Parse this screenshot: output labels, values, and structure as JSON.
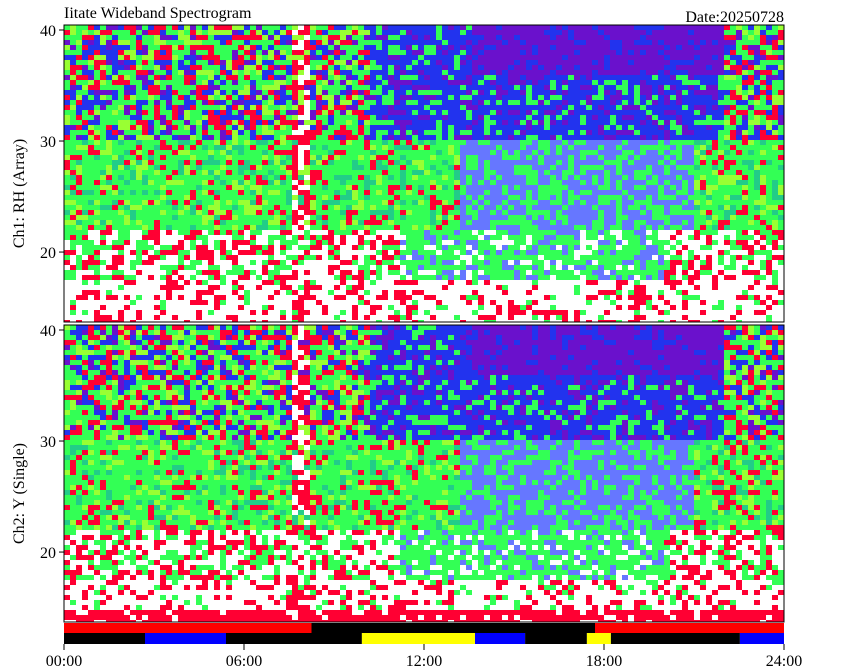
{
  "chart_data": [
    {
      "type": "heatmap",
      "title": "Iitate Wideband Spectrogram",
      "subtitle": "Date:20250728",
      "ylabel": "Ch1: RH (Array)",
      "ylim": [
        13.7,
        40.45
      ],
      "yticks": [
        20,
        30,
        40
      ]
    },
    {
      "type": "heatmap",
      "ylabel": "Ch2: Y (Single)",
      "ylim": [
        13.7,
        40.45
      ],
      "yticks": [
        20,
        30,
        40
      ],
      "xlim": [
        0,
        24
      ],
      "xticks": [
        {
          "value": 0,
          "label": "00:00"
        },
        {
          "value": 6,
          "label": "06:00"
        },
        {
          "value": 12,
          "label": "12:00"
        },
        {
          "value": 18,
          "label": "18:00"
        },
        {
          "value": 24,
          "label": "24:00"
        }
      ],
      "status_rows": [
        [
          {
            "start": 0,
            "end": 8.25,
            "color": "#ff0000"
          },
          {
            "start": 8.25,
            "end": 17.7,
            "color": "#000000"
          },
          {
            "start": 17.7,
            "end": 24,
            "color": "#ff0000"
          }
        ],
        [
          {
            "start": 0,
            "end": 2.7,
            "color": "#000000"
          },
          {
            "start": 2.7,
            "end": 5.4,
            "color": "#0000ff"
          },
          {
            "start": 5.4,
            "end": 9.93,
            "color": "#000000"
          },
          {
            "start": 9.93,
            "end": 13.7,
            "color": "#ffff00"
          },
          {
            "start": 13.7,
            "end": 15.37,
            "color": "#0000ff"
          },
          {
            "start": 15.37,
            "end": 17.43,
            "color": "#000000"
          },
          {
            "start": 17.43,
            "end": 18.23,
            "color": "#ffff00"
          },
          {
            "start": 18.23,
            "end": 22.53,
            "color": "#000000"
          },
          {
            "start": 22.53,
            "end": 24,
            "color": "#0000ff"
          }
        ]
      ]
    }
  ]
}
